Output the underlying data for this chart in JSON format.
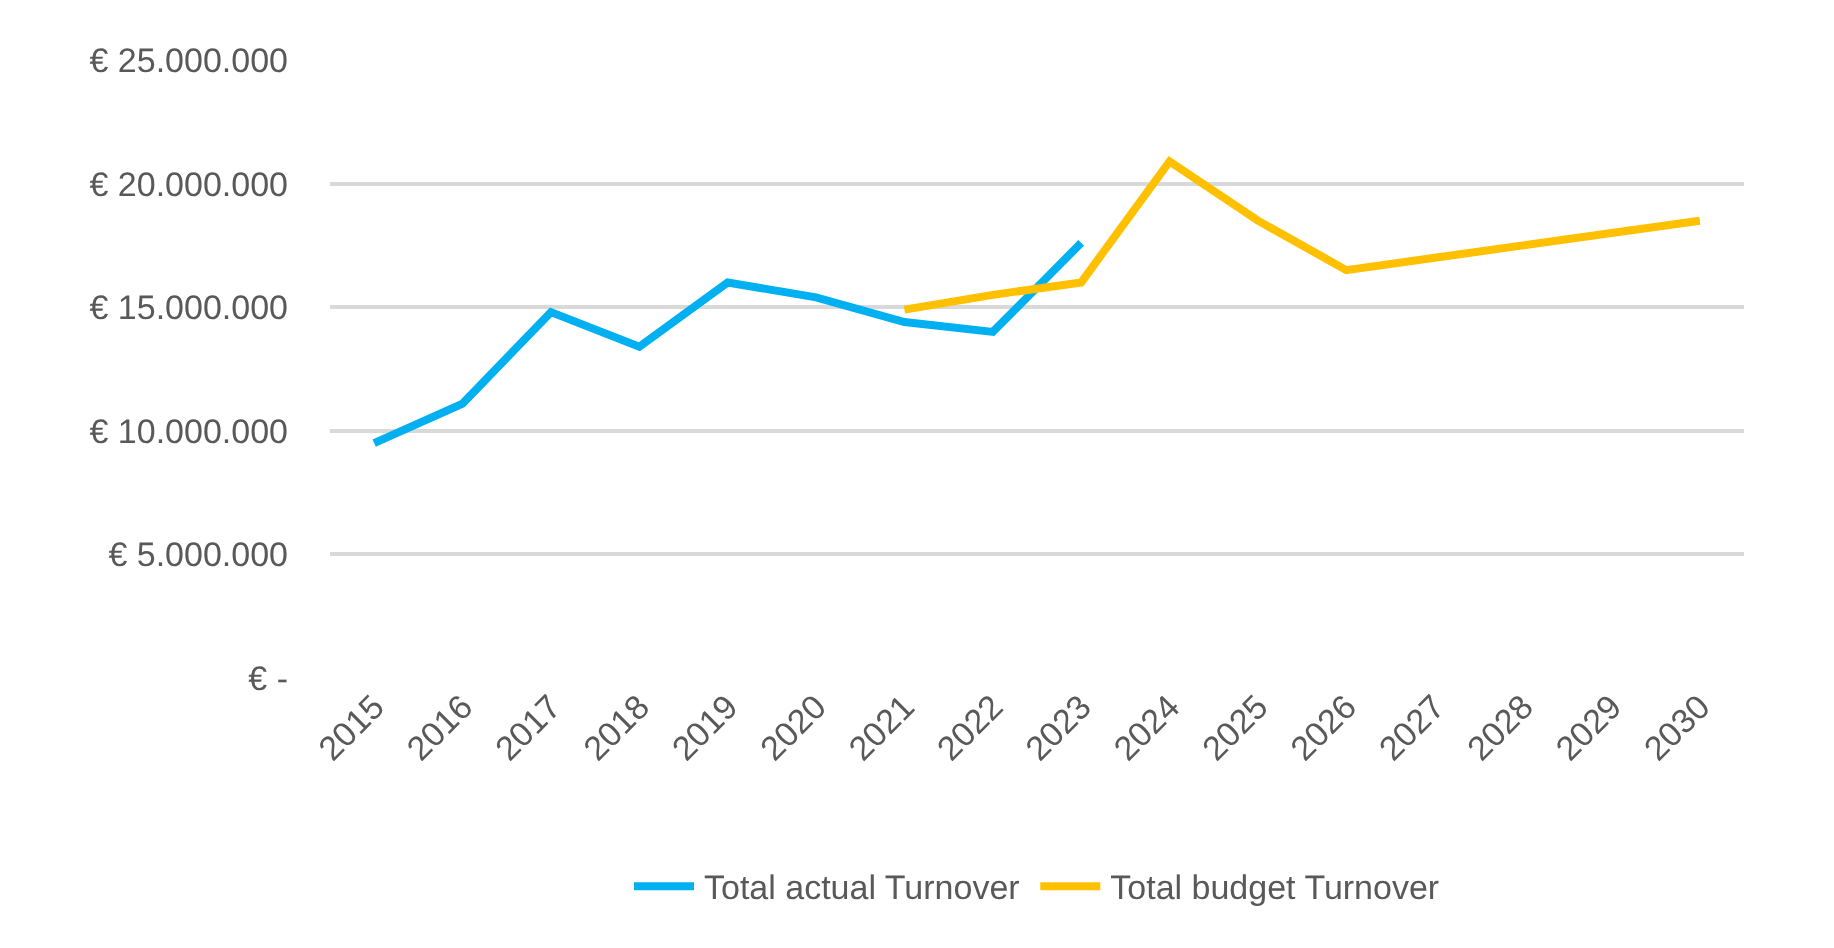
{
  "chart_data": {
    "type": "line",
    "categories": [
      "2015",
      "2016",
      "2017",
      "2018",
      "2019",
      "2020",
      "2021",
      "2022",
      "2023",
      "2024",
      "2025",
      "2026",
      "2027",
      "2028",
      "2029",
      "2030"
    ],
    "series": [
      {
        "name": "Total actual Turnover",
        "color": "#00b0f0",
        "values": [
          9500000,
          11100000,
          14800000,
          13400000,
          16000000,
          15400000,
          14400000,
          14000000,
          17600000,
          null,
          null,
          null,
          null,
          null,
          null,
          null
        ]
      },
      {
        "name": "Total budget Turnover",
        "color": "#ffc000",
        "values": [
          null,
          null,
          null,
          null,
          null,
          null,
          14900000,
          15500000,
          16000000,
          20900000,
          18500000,
          16500000,
          17000000,
          17500000,
          18000000,
          18500000
        ]
      }
    ],
    "ylim": [
      0,
      25000000
    ],
    "yticks": [
      {
        "value": 0,
        "label": "€ -"
      },
      {
        "value": 5000000,
        "label": "€ 5.000.000"
      },
      {
        "value": 10000000,
        "label": "€ 10.000.000"
      },
      {
        "value": 15000000,
        "label": "€ 15.000.000"
      },
      {
        "value": 20000000,
        "label": "€ 20.000.000"
      },
      {
        "value": 25000000,
        "label": "€ 25.000.000"
      }
    ],
    "grid": "y",
    "legend": "bottom",
    "marker": "none",
    "line_style": "solid"
  }
}
